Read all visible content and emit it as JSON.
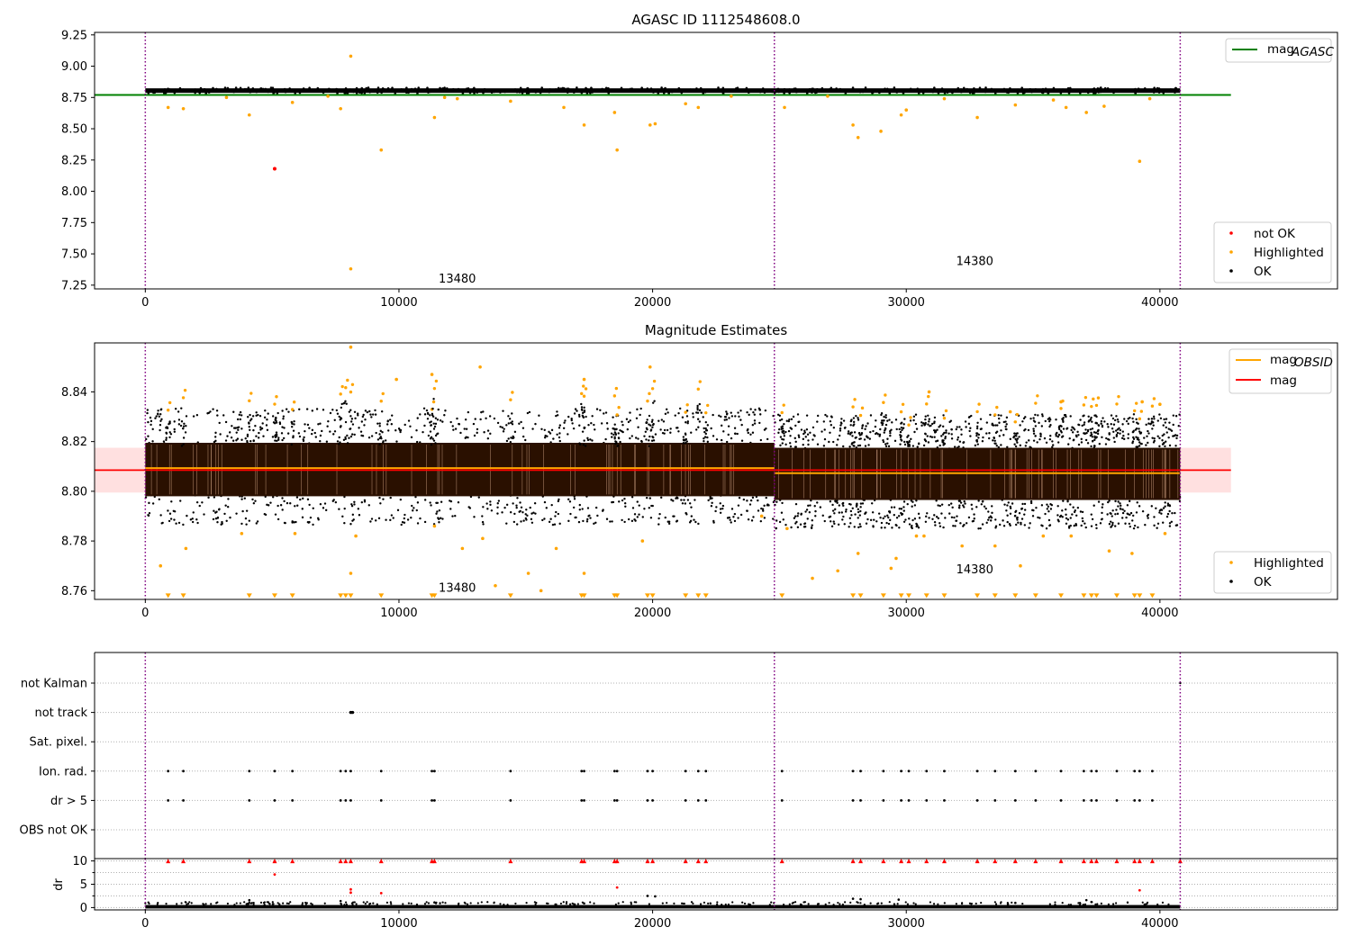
{
  "chart_data": [
    {
      "type": "scatter",
      "title": "AGASC ID 1112548608.0",
      "xlim": [
        -2000,
        47000
      ],
      "ylim": [
        7.22,
        9.27
      ],
      "xticks": [
        0,
        10000,
        20000,
        30000,
        40000
      ],
      "yticks": [
        "7.25",
        "7.50",
        "7.75",
        "8.00",
        "8.25",
        "8.50",
        "8.75",
        "9.00",
        "9.25"
      ],
      "obsid_boundaries": [
        0,
        24800,
        40800
      ],
      "obsid_labels": [
        {
          "text": "13480",
          "x": 12300,
          "y": 7.3
        },
        {
          "text": "14380",
          "x": 32700,
          "y": 7.44
        }
      ],
      "reference_line": {
        "name": "mag_AGASC",
        "y": 8.77,
        "color": "#008000",
        "x_range": [
          -2000,
          42800
        ]
      },
      "ok_band": {
        "x_range": [
          0,
          40800
        ],
        "center": 8.805,
        "half_width": 0.018
      },
      "highlighted_points": [
        [
          8100,
          9.08
        ],
        [
          9300,
          8.33
        ],
        [
          18600,
          8.33
        ],
        [
          5100,
          8.18
        ],
        [
          8100,
          7.38
        ],
        [
          4100,
          8.61
        ],
        [
          1500,
          8.66
        ],
        [
          900,
          8.67
        ],
        [
          7700,
          8.66
        ],
        [
          11400,
          8.59
        ],
        [
          17300,
          8.53
        ],
        [
          19900,
          8.53
        ],
        [
          20100,
          8.54
        ],
        [
          18500,
          8.63
        ],
        [
          16500,
          8.67
        ],
        [
          21300,
          8.7
        ],
        [
          21800,
          8.67
        ],
        [
          27900,
          8.53
        ],
        [
          28100,
          8.43
        ],
        [
          29000,
          8.48
        ],
        [
          29800,
          8.61
        ],
        [
          30000,
          8.65
        ],
        [
          32800,
          8.59
        ],
        [
          34300,
          8.69
        ],
        [
          36300,
          8.67
        ],
        [
          37100,
          8.63
        ],
        [
          37800,
          8.68
        ],
        [
          39200,
          8.24
        ],
        [
          39600,
          8.74
        ],
        [
          25200,
          8.67
        ],
        [
          12300,
          8.74
        ],
        [
          14400,
          8.72
        ],
        [
          5800,
          8.71
        ],
        [
          31500,
          8.74
        ],
        [
          26900,
          8.76
        ],
        [
          3200,
          8.75
        ],
        [
          7200,
          8.76
        ],
        [
          11800,
          8.75
        ],
        [
          23100,
          8.76
        ],
        [
          35800,
          8.73
        ]
      ],
      "not_ok_points": [
        [
          5100,
          8.18
        ]
      ],
      "legends": [
        {
          "position": "top-right",
          "entries": [
            {
              "label": "mag",
              "sub": "AGASC",
              "kind": "line",
              "color": "#008000"
            }
          ]
        },
        {
          "position": "lower-right",
          "entries": [
            {
              "label": "not OK",
              "kind": "dot",
              "color": "#ff0000"
            },
            {
              "label": "Highlighted",
              "kind": "dot",
              "color": "#ffa500"
            },
            {
              "label": "OK",
              "kind": "dot",
              "color": "#000000"
            }
          ]
        }
      ]
    },
    {
      "type": "scatter",
      "title": "Magnitude Estimates",
      "xlim": [
        -2000,
        47000
      ],
      "ylim": [
        8.7565,
        8.8597
      ],
      "xticks": [
        0,
        10000,
        20000,
        30000,
        40000
      ],
      "yticks": [
        "8.76",
        "8.78",
        "8.80",
        "8.82",
        "8.84"
      ],
      "obsid_boundaries": [
        0,
        24800,
        40800
      ],
      "obsid_labels": [
        {
          "text": "13480",
          "x": 12300,
          "y": 8.761
        },
        {
          "text": "14380",
          "x": 32700,
          "y": 8.7685
        }
      ],
      "mag_line": {
        "name": "mag",
        "y": 8.8085,
        "band": [
          8.7995,
          8.8175
        ],
        "x_range": [
          -2000,
          42800
        ],
        "color": "#ff0000"
      },
      "obsid_segments": [
        {
          "x_range": [
            0,
            24800
          ],
          "mag": 8.8093,
          "band": [
            8.798,
            8.8195
          ],
          "outer": [
            8.7865,
            8.8335
          ]
        },
        {
          "x_range": [
            24800,
            40800
          ],
          "mag": 8.8073,
          "band": [
            8.7965,
            8.8175
          ],
          "outer": [
            8.785,
            8.831
          ]
        }
      ],
      "low_marker_y": 8.7578,
      "highlighted_points": [
        [
          8100,
          8.858
        ],
        [
          13200,
          8.85
        ],
        [
          19900,
          8.85
        ],
        [
          11300,
          8.847
        ],
        [
          17300,
          8.845
        ],
        [
          9900,
          8.845
        ],
        [
          600,
          8.77
        ],
        [
          1600,
          8.777
        ],
        [
          3800,
          8.783
        ],
        [
          5900,
          8.783
        ],
        [
          8300,
          8.782
        ],
        [
          8100,
          8.767
        ],
        [
          11400,
          8.786
        ],
        [
          12500,
          8.777
        ],
        [
          13300,
          8.781
        ],
        [
          13800,
          8.762
        ],
        [
          15100,
          8.767
        ],
        [
          15600,
          8.76
        ],
        [
          16200,
          8.777
        ],
        [
          17300,
          8.767
        ],
        [
          19600,
          8.78
        ],
        [
          24300,
          8.79
        ],
        [
          25300,
          8.785
        ],
        [
          26300,
          8.765
        ],
        [
          27300,
          8.768
        ],
        [
          28100,
          8.775
        ],
        [
          29400,
          8.769
        ],
        [
          29600,
          8.773
        ],
        [
          30400,
          8.782
        ],
        [
          30700,
          8.782
        ],
        [
          32200,
          8.778
        ],
        [
          33500,
          8.778
        ],
        [
          34500,
          8.77
        ],
        [
          35400,
          8.782
        ],
        [
          36500,
          8.782
        ],
        [
          38000,
          8.776
        ],
        [
          38900,
          8.775
        ],
        [
          40200,
          8.783
        ],
        [
          30900,
          8.84
        ],
        [
          34100,
          8.832
        ],
        [
          36100,
          8.836
        ],
        [
          39300,
          8.836
        ],
        [
          40000,
          8.835
        ]
      ],
      "legends": [
        {
          "position": "top-right",
          "entries": [
            {
              "label": "mag",
              "sub": "OBSID",
              "kind": "line",
              "color": "#ffa500"
            },
            {
              "label": "mag",
              "kind": "line",
              "color": "#ff0000"
            }
          ]
        },
        {
          "position": "lower-right",
          "entries": [
            {
              "label": "Highlighted",
              "kind": "dot",
              "color": "#ffa500"
            },
            {
              "label": "OK",
              "kind": "dot",
              "color": "#000000"
            }
          ]
        }
      ]
    },
    {
      "type": "scatter",
      "xlim": [
        -2000,
        47000
      ],
      "categories": [
        "not Kalman",
        "not track",
        "Sat. pixel.",
        "Ion. rad.",
        "dr > 5",
        "OBS not OK"
      ],
      "obsid_boundaries": [
        0,
        24800,
        40800
      ],
      "flag_x": [
        900,
        1500,
        4100,
        5100,
        5800,
        7700,
        7900,
        8100,
        9300,
        11300,
        11400,
        14400,
        17200,
        17300,
        18500,
        18600,
        19800,
        20000,
        21300,
        21800,
        22100,
        25100,
        27900,
        28200,
        29100,
        29800,
        30100,
        30800,
        31500,
        32800,
        33500,
        34300,
        35100,
        36100,
        37000,
        37300,
        37500,
        38300,
        39000,
        39200,
        39700
      ],
      "not_track_x": [
        8100
      ],
      "not_kalman_x": [
        40800
      ]
    },
    {
      "type": "scatter",
      "ylabel": "dr",
      "xlim": [
        -2000,
        47000
      ],
      "ylim": [
        -0.5,
        10.5
      ],
      "xticks": [
        0,
        10000,
        20000,
        30000,
        40000
      ],
      "yticks": [
        "0",
        "5",
        "10"
      ],
      "obsid_boundaries": [
        0,
        24800,
        40800
      ],
      "clipped_value": 10,
      "red_points": [
        [
          5100,
          7.1
        ],
        [
          8100,
          3.9
        ],
        [
          8100,
          3.2
        ],
        [
          9300,
          3.1
        ],
        [
          18600,
          4.3
        ],
        [
          39200,
          3.7
        ]
      ],
      "black_points": [
        [
          4100,
          1.6
        ],
        [
          7700,
          1.4
        ],
        [
          19800,
          2.5
        ],
        [
          20100,
          2.4
        ],
        [
          27900,
          1.9
        ],
        [
          28200,
          1.8
        ],
        [
          29700,
          1.7
        ],
        [
          37100,
          1.6
        ],
        [
          37300,
          1.2
        ],
        [
          34300,
          1.0
        ],
        [
          11400,
          1.1
        ],
        [
          17300,
          0.9
        ]
      ]
    }
  ]
}
